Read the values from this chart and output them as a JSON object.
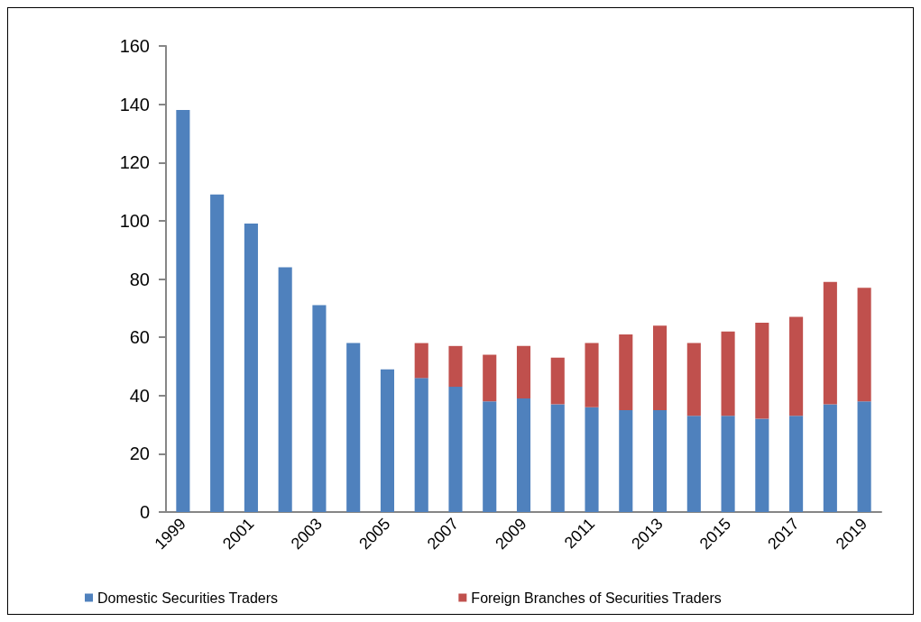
{
  "chart_data": {
    "type": "bar",
    "stacked": true,
    "categories": [
      "1999",
      null,
      "2001",
      null,
      "2003",
      null,
      "2005",
      null,
      "2007",
      null,
      "2009",
      null,
      "2011",
      null,
      "2013",
      null,
      "2015",
      null,
      "2017",
      null,
      "2019"
    ],
    "series": [
      {
        "name": "Domestic Securities Traders",
        "color": "#4f81bd",
        "values": [
          138,
          109,
          99,
          84,
          71,
          58,
          49,
          46,
          43,
          38,
          39,
          37,
          36,
          35,
          35,
          33,
          33,
          32,
          33,
          37,
          38
        ]
      },
      {
        "name": "Foreign Branches of Securities Traders",
        "color": "#c0504d",
        "values": [
          null,
          null,
          null,
          null,
          null,
          null,
          null,
          12,
          14,
          16,
          18,
          16,
          22,
          26,
          29,
          25,
          29,
          33,
          34,
          42,
          39
        ]
      }
    ],
    "ylim": [
      0,
      160
    ],
    "yticks": [
      0,
      20,
      40,
      60,
      80,
      100,
      120,
      140,
      160
    ],
    "grid": false,
    "legend": "bottom"
  }
}
